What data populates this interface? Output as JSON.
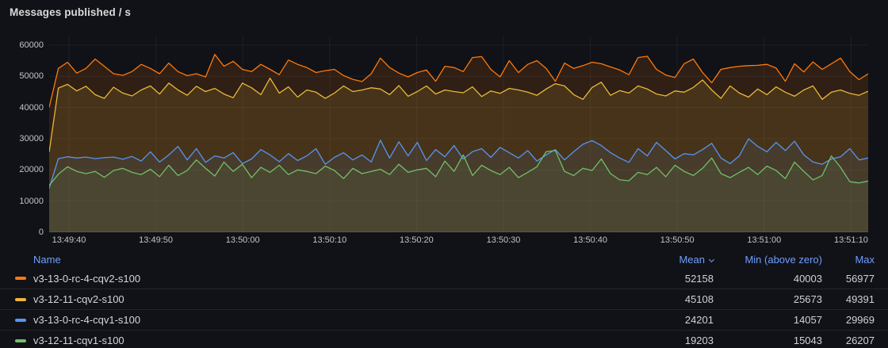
{
  "panel": {
    "title": "Messages published / s"
  },
  "colors": {
    "background": "#111217",
    "grid": "rgba(204,204,220,0.07)",
    "axis_text": "#C2C3C9",
    "header_link": "#6E9FFF"
  },
  "legend": {
    "name_label": "Name",
    "mean_label": "Mean",
    "min_label": "Min (above zero)",
    "max_label": "Max",
    "sort_column": "Mean",
    "sort_direction": "desc"
  },
  "chart_data": {
    "type": "line",
    "title": "Messages published / s",
    "xlabel": "",
    "ylabel": "",
    "grid": true,
    "legend_position": "bottom-table",
    "ylim": [
      0,
      63000
    ],
    "y_ticks": [
      0,
      10000,
      20000,
      30000,
      40000,
      50000,
      60000
    ],
    "x_ticks": [
      "13:49:40",
      "13:49:50",
      "13:50:00",
      "13:50:10",
      "13:50:20",
      "13:50:30",
      "13:50:40",
      "13:50:50",
      "13:51:00",
      "13:51:10"
    ],
    "series": [
      {
        "name": "v3-13-0-rc-4-cqv2-s100",
        "color": "#FF780A",
        "fill_opacity": 0.13,
        "mean": "52158",
        "min": "40003",
        "max": "56977",
        "values": [
          40003,
          52500,
          54500,
          51000,
          52500,
          55500,
          53200,
          50800,
          50300,
          51500,
          53800,
          52500,
          50800,
          54200,
          51500,
          50200,
          50800,
          49800,
          56977,
          53200,
          54800,
          52200,
          51500,
          53800,
          52200,
          50500,
          55200,
          53800,
          52800,
          51200,
          51800,
          52200,
          50200,
          49000,
          48300,
          50800,
          55800,
          52800,
          51000,
          49800,
          51200,
          52000,
          48400,
          53200,
          52800,
          51500,
          56000,
          56300,
          52200,
          49800,
          55000,
          51200,
          53800,
          55000,
          52500,
          48400,
          54200,
          52500,
          53400,
          54500,
          54000,
          53000,
          52000,
          50500,
          56000,
          56400,
          52200,
          50400,
          49600,
          54000,
          55500,
          51200,
          47900,
          52200,
          52800,
          53200,
          53400,
          53500,
          53800,
          52600,
          48400,
          54000,
          51400,
          54600,
          52200,
          54000,
          55800,
          51500,
          48900,
          50800
        ]
      },
      {
        "name": "v3-12-11-cqv2-s100",
        "color": "#EAB839",
        "fill_opacity": 0.13,
        "mean": "45108",
        "min": "25673",
        "max": "49391",
        "values": [
          25673,
          46200,
          47400,
          45300,
          46800,
          44100,
          42900,
          46500,
          44600,
          43700,
          45600,
          46900,
          44300,
          47800,
          45600,
          43900,
          46800,
          45100,
          46100,
          44300,
          43100,
          47800,
          46300,
          44100,
          49391,
          44600,
          46600,
          43300,
          45600,
          44900,
          42900,
          44600,
          46900,
          45100,
          45600,
          46300,
          45900,
          44100,
          47000,
          43600,
          45100,
          46900,
          44300,
          45600,
          45100,
          44700,
          46600,
          43500,
          45300,
          44500,
          46100,
          45600,
          44900,
          43900,
          45900,
          47600,
          46900,
          44100,
          42600,
          46400,
          48100,
          43900,
          45400,
          44600,
          46900,
          45900,
          44300,
          43700,
          45300,
          44900,
          46400,
          48800,
          45600,
          42900,
          46900,
          44600,
          43300,
          45900,
          44100,
          46600,
          44900,
          43600,
          45600,
          46900,
          42600,
          44900,
          45600,
          44500,
          43900,
          45200
        ]
      },
      {
        "name": "v3-13-0-rc-4-cqv1-s100",
        "color": "#5794F2",
        "fill_opacity": 0.09,
        "mean": "24201",
        "min": "14057",
        "max": "29969",
        "values": [
          14057,
          23600,
          24200,
          23800,
          24100,
          23600,
          23900,
          24100,
          23400,
          24300,
          22800,
          25800,
          22500,
          24800,
          27500,
          23200,
          26800,
          22400,
          24500,
          23800,
          25500,
          22000,
          23500,
          26500,
          24800,
          22600,
          25200,
          23000,
          24500,
          26800,
          21800,
          24000,
          25500,
          23200,
          24800,
          22500,
          29500,
          23800,
          29000,
          24500,
          28800,
          23000,
          26500,
          24200,
          27800,
          23500,
          25800,
          26800,
          24000,
          27200,
          25500,
          23800,
          26200,
          22800,
          24800,
          26500,
          23200,
          25800,
          28200,
          29400,
          27800,
          25500,
          23800,
          22400,
          26800,
          24500,
          28800,
          26200,
          23500,
          25200,
          24800,
          26500,
          28500,
          23800,
          22000,
          24500,
          29969,
          27500,
          25800,
          28800,
          26200,
          29200,
          24800,
          22500,
          21800,
          23500,
          24200,
          26800,
          23200,
          23800
        ]
      },
      {
        "name": "v3-12-11-cqv1-s100",
        "color": "#73BF69",
        "fill_opacity": 0.09,
        "mean": "19203",
        "min": "15043",
        "max": "26207",
        "values": [
          15043,
          18600,
          21000,
          19500,
          18800,
          19500,
          17600,
          19800,
          20500,
          19200,
          18500,
          20200,
          17800,
          21500,
          18200,
          19800,
          23200,
          20500,
          18000,
          22500,
          19500,
          21800,
          17500,
          20800,
          19200,
          21500,
          18500,
          20000,
          19500,
          18800,
          21200,
          19800,
          17200,
          20500,
          18800,
          19500,
          20200,
          18500,
          21800,
          19200,
          20000,
          20500,
          17800,
          22800,
          19500,
          24800,
          18200,
          21500,
          19800,
          18500,
          20800,
          17500,
          19200,
          21000,
          25800,
          26207,
          19500,
          18200,
          20500,
          19800,
          23500,
          18800,
          16800,
          16500,
          19200,
          18500,
          20800,
          17800,
          21500,
          19500,
          18200,
          20500,
          23800,
          18800,
          17500,
          19200,
          20800,
          18500,
          21200,
          19800,
          17200,
          22500,
          19500,
          16800,
          18200,
          24500,
          20800,
          16200,
          15800,
          16400
        ]
      }
    ]
  }
}
